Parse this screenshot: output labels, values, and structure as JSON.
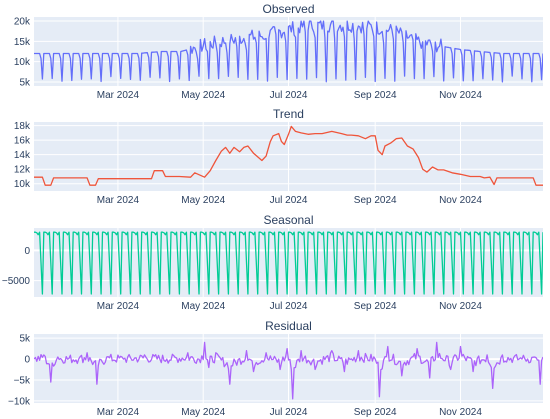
{
  "chart_data": [
    {
      "type": "line",
      "title": "Observed",
      "color": "#636efa",
      "ylim": [
        4000,
        21000
      ],
      "yticks": [
        5000,
        10000,
        15000,
        20000
      ],
      "ytick_labels": [
        "5k",
        "10k",
        "15k",
        "20k"
      ],
      "xlim": [
        "2024-01-01",
        "2024-12-30"
      ],
      "xticks": [
        "2024-03-01",
        "2024-05-01",
        "2024-07-01",
        "2024-09-01",
        "2024-11-01"
      ],
      "xtick_labels": [
        "Mar 2024",
        "May 2024",
        "Jul 2024",
        "Sep 2024",
        "Nov 2024"
      ],
      "grid": true,
      "series": [
        {
          "x": [
            "2024-01-01",
            "2024-01-15",
            "2024-02-01",
            "2024-02-15",
            "2024-03-01",
            "2024-03-15",
            "2024-04-01",
            "2024-04-15",
            "2024-05-01",
            "2024-05-15",
            "2024-06-01",
            "2024-06-15",
            "2024-07-01",
            "2024-07-15",
            "2024-08-01",
            "2024-08-15",
            "2024-09-01",
            "2024-09-15",
            "2024-10-01",
            "2024-10-15",
            "2024-11-01",
            "2024-11-15",
            "2024-12-01",
            "2024-12-15",
            "2024-12-30"
          ],
          "y": [
            12000,
            12000,
            12000,
            12000,
            12000,
            12000,
            12500,
            12500,
            14000,
            15000,
            16000,
            16500,
            18000,
            19000,
            19000,
            19000,
            18500,
            17500,
            15000,
            14000,
            13000,
            12500,
            12000,
            12000,
            12000
          ]
        }
      ]
    },
    {
      "type": "line",
      "title": "Trend",
      "color": "#ef553b",
      "ylim": [
        9000,
        18500
      ],
      "yticks": [
        10000,
        12000,
        14000,
        16000,
        18000
      ],
      "ytick_labels": [
        "10k",
        "12k",
        "14k",
        "16k",
        "18k"
      ],
      "xlim": [
        "2024-01-01",
        "2024-12-30"
      ],
      "xticks": [
        "2024-03-01",
        "2024-05-01",
        "2024-07-01",
        "2024-09-01",
        "2024-11-01"
      ],
      "xtick_labels": [
        "Mar 2024",
        "May 2024",
        "Jul 2024",
        "Sep 2024",
        "Nov 2024"
      ],
      "grid": true,
      "series": [
        {
          "x": [
            "2024-01-01",
            "2024-01-07",
            "2024-01-09",
            "2024-01-13",
            "2024-01-15",
            "2024-02-08",
            "2024-02-10",
            "2024-02-14",
            "2024-02-16",
            "2024-03-25",
            "2024-03-27",
            "2024-04-02",
            "2024-04-04",
            "2024-04-12",
            "2024-04-14",
            "2024-04-22",
            "2024-04-25",
            "2024-05-02",
            "2024-05-06",
            "2024-05-10",
            "2024-05-14",
            "2024-05-17",
            "2024-05-20",
            "2024-05-23",
            "2024-05-27",
            "2024-05-30",
            "2024-06-02",
            "2024-06-06",
            "2024-06-12",
            "2024-06-15",
            "2024-06-18",
            "2024-06-20",
            "2024-06-24",
            "2024-06-26",
            "2024-06-28",
            "2024-07-01",
            "2024-07-03",
            "2024-07-06",
            "2024-07-10",
            "2024-07-15",
            "2024-07-20",
            "2024-07-25",
            "2024-08-01",
            "2024-08-08",
            "2024-08-12",
            "2024-08-15",
            "2024-08-20",
            "2024-08-25",
            "2024-08-29",
            "2024-09-01",
            "2024-09-03",
            "2024-09-06",
            "2024-09-08",
            "2024-09-12",
            "2024-09-16",
            "2024-09-20",
            "2024-09-24",
            "2024-09-28",
            "2024-10-02",
            "2024-10-05",
            "2024-10-08",
            "2024-10-12",
            "2024-10-16",
            "2024-10-20",
            "2024-10-26",
            "2024-11-01",
            "2024-11-08",
            "2024-11-15",
            "2024-11-18",
            "2024-11-22",
            "2024-11-25",
            "2024-11-27",
            "2024-12-23",
            "2024-12-25",
            "2024-12-30"
          ],
          "y": [
            10900,
            10900,
            9800,
            9800,
            10800,
            10800,
            9800,
            9800,
            10700,
            10700,
            11800,
            11800,
            11000,
            11000,
            11000,
            10900,
            11500,
            10900,
            11800,
            13200,
            14500,
            15000,
            14200,
            15000,
            14400,
            15000,
            15200,
            14200,
            13200,
            13800,
            15800,
            16600,
            16900,
            15800,
            15400,
            16800,
            17900,
            17200,
            17000,
            16800,
            16900,
            16900,
            17200,
            16900,
            16700,
            16700,
            16600,
            16200,
            16600,
            16600,
            14600,
            14000,
            15200,
            15600,
            16200,
            16300,
            15200,
            14800,
            13600,
            12000,
            11600,
            12300,
            11900,
            11900,
            11500,
            11300,
            11000,
            11000,
            10800,
            10900,
            9900,
            10800,
            10800,
            9800,
            9800
          ]
        }
      ]
    },
    {
      "type": "line",
      "title": "Seasonal",
      "color": "#00cc96",
      "ylim": [
        -7700,
        3700
      ],
      "yticks": [
        -5000,
        0
      ],
      "ytick_labels": [
        "−5000",
        "0"
      ],
      "xlim": [
        "2024-01-01",
        "2024-12-30"
      ],
      "xticks": [
        "2024-03-01",
        "2024-05-01",
        "2024-07-01",
        "2024-09-01",
        "2024-11-01"
      ],
      "xtick_labels": [
        "Mar 2024",
        "May 2024",
        "Jul 2024",
        "Sep 2024",
        "Nov 2024"
      ],
      "grid": true,
      "weekly_pattern": [
        3000,
        3000,
        2900,
        2600,
        3000,
        -2000,
        -7200
      ],
      "series": [
        {
          "x": [],
          "y": []
        }
      ]
    },
    {
      "type": "line",
      "title": "Residual",
      "color": "#ab63fa",
      "ylim": [
        -10500,
        6000
      ],
      "yticks": [
        -10000,
        -5000,
        0,
        5000
      ],
      "ytick_labels": [
        "−10k",
        "−5k",
        "0",
        "5k"
      ],
      "xlim": [
        "2024-01-01",
        "2024-12-30"
      ],
      "xticks": [
        "2024-03-01",
        "2024-05-01",
        "2024-07-01",
        "2024-09-01",
        "2024-11-01"
      ],
      "xtick_labels": [
        "Mar 2024",
        "May 2024",
        "Jul 2024",
        "Sep 2024",
        "Nov 2024"
      ],
      "grid": true,
      "series": [
        {
          "x": [
            "2024-01-01",
            "2024-01-08",
            "2024-01-13",
            "2024-01-18",
            "2024-02-02",
            "2024-02-08",
            "2024-02-15",
            "2024-02-22",
            "2024-03-05",
            "2024-03-20",
            "2024-04-05",
            "2024-04-20",
            "2024-04-28",
            "2024-05-02",
            "2024-05-05",
            "2024-05-10",
            "2024-05-20",
            "2024-06-01",
            "2024-06-06",
            "2024-06-15",
            "2024-06-25",
            "2024-06-30",
            "2024-07-04",
            "2024-07-10",
            "2024-07-20",
            "2024-08-01",
            "2024-08-10",
            "2024-08-20",
            "2024-09-01",
            "2024-09-04",
            "2024-09-10",
            "2024-09-20",
            "2024-10-01",
            "2024-10-10",
            "2024-10-15",
            "2024-10-25",
            "2024-11-01",
            "2024-11-10",
            "2024-11-20",
            "2024-11-24",
            "2024-12-01",
            "2024-12-15",
            "2024-12-24",
            "2024-12-28",
            "2024-12-30"
          ],
          "y": [
            0,
            1000,
            -5500,
            500,
            0,
            1500,
            -6000,
            500,
            0,
            1000,
            0,
            1500,
            0,
            4000,
            -2000,
            1500,
            -6000,
            2000,
            -3000,
            1500,
            -2500,
            2500,
            -9500,
            2000,
            -2500,
            2000,
            -3000,
            2000,
            0,
            -9000,
            3000,
            -4000,
            2500,
            -4500,
            4000,
            -2500,
            3000,
            -3000,
            1000,
            -7000,
            1000,
            0,
            500,
            -6000,
            500
          ]
        }
      ]
    }
  ]
}
